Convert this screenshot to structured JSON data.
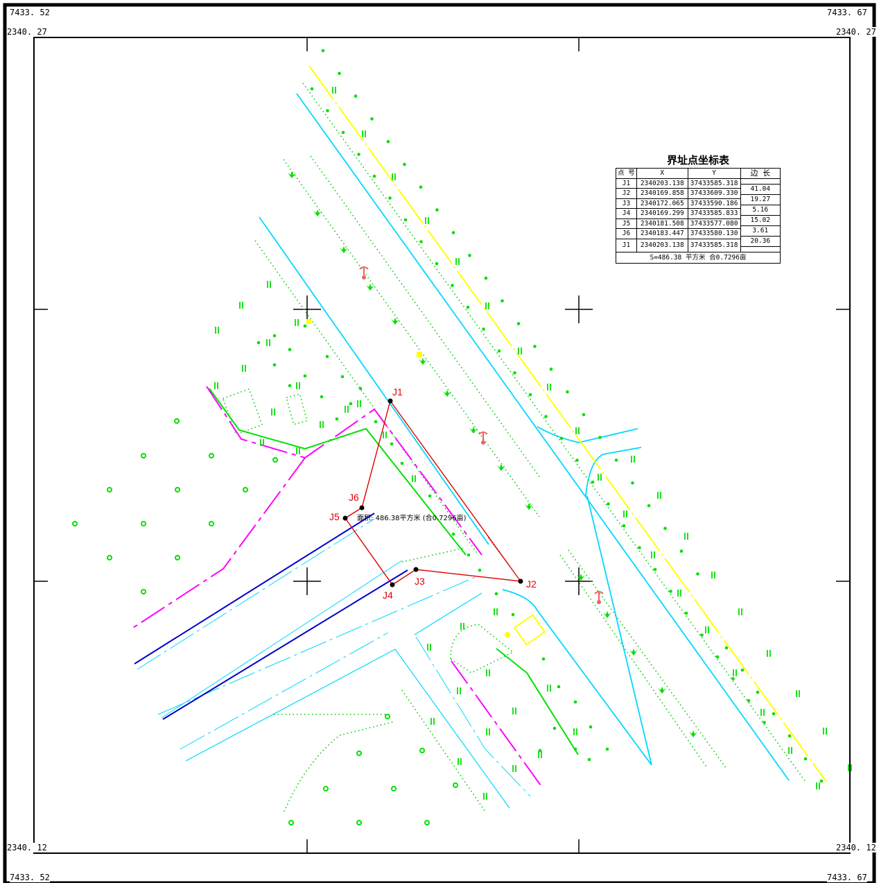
{
  "sheet": {
    "corner_labels": {
      "top_left_easting": "7433. 52",
      "top_right_easting": "7433. 67",
      "top_left_northing": "2340. 27",
      "top_right_northing": "2340. 27",
      "bottom_left_northing": "2340. 12",
      "bottom_right_northing": "2340. 12",
      "bottom_left_easting": "7433. 52",
      "bottom_right_easting": "7433. 67"
    }
  },
  "coordinate_table": {
    "title": "界址点坐标表",
    "headers": {
      "point": "点 号",
      "x": "X",
      "y": "Y",
      "length": "边 长"
    },
    "rows": [
      {
        "point": "J1",
        "x": "2340203.138",
        "y": "37433585.318"
      },
      {
        "point": "J2",
        "x": "2340169.858",
        "y": "37433609.330"
      },
      {
        "point": "J3",
        "x": "2340172.065",
        "y": "37433590.186"
      },
      {
        "point": "J4",
        "x": "2340169.299",
        "y": "37433585.833"
      },
      {
        "point": "J5",
        "x": "2340181.508",
        "y": "37433577.080"
      },
      {
        "point": "J6",
        "x": "2340183.447",
        "y": "37433580.130"
      },
      {
        "point": "J1",
        "x": "2340203.138",
        "y": "37433585.318"
      }
    ],
    "edge_lengths": [
      "41.04",
      "19.27",
      "5.16",
      "15.02",
      "3.61",
      "20.36"
    ],
    "total": "S=486.38 平方米 合0.7296亩"
  },
  "parcel": {
    "points": [
      "J1",
      "J2",
      "J3",
      "J4",
      "J5",
      "J6"
    ],
    "area_note": "面积: 486.38平方米 (合0.7296亩)",
    "boundary_color": "#e00000"
  },
  "legend_colors": {
    "road_edge": "#00d8ff",
    "centerline": "#ffff00",
    "green_belt": "#00e000",
    "magenta_line": "#ff00ff",
    "blue_line": "#0000cc",
    "parcel": "#e00000"
  },
  "icons": [
    "street-lamp-icon",
    "tree-symbol-icon",
    "grass-symbol-icon"
  ]
}
